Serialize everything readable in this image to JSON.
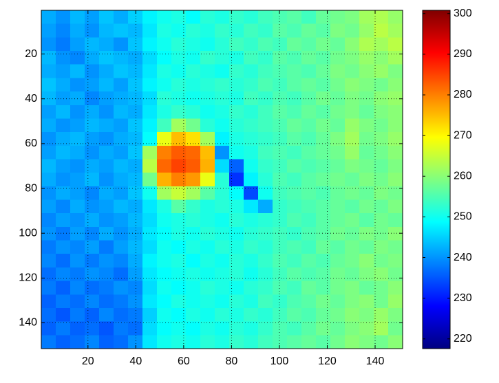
{
  "chart_data": {
    "type": "heatmap",
    "colormap": "jet",
    "grid": true,
    "y_reversed": true,
    "xlim": [
      0.5,
      151.5
    ],
    "ylim": [
      0.5,
      151.5
    ],
    "xticks": [
      20,
      40,
      60,
      80,
      100,
      120,
      140
    ],
    "yticks": [
      20,
      40,
      60,
      80,
      100,
      120,
      140
    ],
    "clim": [
      217.6,
      300.8
    ],
    "cticks": [
      220,
      230,
      240,
      250,
      260,
      270,
      280,
      290,
      300
    ],
    "z": [
      [
        242,
        240,
        243,
        241,
        244,
        242,
        245,
        248,
        250,
        251,
        249,
        252,
        251,
        253,
        252,
        254,
        255,
        256,
        254,
        257,
        258,
        259,
        262,
        263,
        261
      ],
      [
        241,
        239,
        242,
        240,
        243,
        244,
        243,
        247,
        251,
        250,
        252,
        251,
        253,
        252,
        254,
        253,
        256,
        255,
        257,
        256,
        259,
        258,
        261,
        264,
        262
      ],
      [
        240,
        238,
        241,
        243,
        242,
        240,
        244,
        248,
        250,
        252,
        251,
        250,
        252,
        254,
        253,
        255,
        254,
        257,
        256,
        258,
        257,
        260,
        263,
        262,
        264
      ],
      [
        243,
        240,
        239,
        242,
        244,
        243,
        242,
        246,
        249,
        251,
        250,
        253,
        252,
        251,
        254,
        253,
        256,
        255,
        257,
        256,
        258,
        259,
        261,
        260,
        262
      ],
      [
        242,
        241,
        243,
        240,
        242,
        244,
        243,
        247,
        251,
        250,
        252,
        251,
        250,
        253,
        252,
        254,
        255,
        256,
        255,
        257,
        259,
        258,
        260,
        261,
        259
      ],
      [
        244,
        242,
        240,
        241,
        243,
        241,
        244,
        248,
        250,
        252,
        251,
        252,
        253,
        252,
        253,
        255,
        254,
        256,
        257,
        256,
        258,
        260,
        259,
        258,
        260
      ],
      [
        243,
        241,
        242,
        239,
        241,
        242,
        243,
        246,
        252,
        251,
        250,
        251,
        252,
        251,
        254,
        253,
        255,
        254,
        256,
        258,
        257,
        259,
        258,
        260,
        261
      ],
      [
        241,
        243,
        240,
        242,
        240,
        243,
        242,
        247,
        251,
        253,
        252,
        250,
        251,
        253,
        252,
        254,
        256,
        255,
        257,
        256,
        258,
        259,
        257,
        259,
        260
      ],
      [
        242,
        240,
        241,
        243,
        242,
        241,
        244,
        248,
        254,
        262,
        258,
        252,
        250,
        252,
        253,
        254,
        255,
        257,
        256,
        258,
        257,
        261,
        259,
        258,
        260
      ],
      [
        240,
        242,
        243,
        241,
        240,
        242,
        243,
        249,
        268,
        275,
        272,
        262,
        248,
        251,
        252,
        253,
        254,
        256,
        255,
        257,
        259,
        262,
        258,
        259,
        261
      ],
      [
        241,
        243,
        242,
        240,
        242,
        241,
        244,
        262,
        280,
        283,
        282,
        275,
        240,
        250,
        251,
        254,
        255,
        254,
        256,
        257,
        258,
        261,
        257,
        258,
        260
      ],
      [
        243,
        241,
        240,
        242,
        241,
        243,
        242,
        264,
        282,
        285,
        283,
        276,
        246,
        236,
        250,
        253,
        254,
        256,
        255,
        256,
        257,
        259,
        258,
        257,
        259
      ],
      [
        242,
        240,
        241,
        243,
        240,
        242,
        243,
        258,
        276,
        280,
        278,
        268,
        252,
        232,
        248,
        252,
        255,
        254,
        256,
        257,
        258,
        257,
        259,
        258,
        260
      ],
      [
        240,
        242,
        241,
        239,
        242,
        241,
        244,
        250,
        262,
        265,
        262,
        256,
        252,
        249,
        234,
        250,
        254,
        255,
        256,
        255,
        257,
        258,
        257,
        259,
        258
      ],
      [
        241,
        239,
        242,
        240,
        241,
        243,
        242,
        247,
        251,
        256,
        253,
        251,
        252,
        251,
        247,
        242,
        253,
        254,
        255,
        256,
        257,
        256,
        258,
        257,
        259
      ],
      [
        239,
        241,
        240,
        242,
        240,
        241,
        243,
        246,
        250,
        251,
        252,
        251,
        250,
        252,
        251,
        252,
        253,
        255,
        254,
        256,
        257,
        258,
        256,
        258,
        257
      ],
      [
        240,
        238,
        241,
        239,
        242,
        240,
        242,
        247,
        249,
        251,
        250,
        252,
        251,
        250,
        252,
        253,
        254,
        253,
        255,
        256,
        258,
        257,
        259,
        258,
        260
      ],
      [
        238,
        240,
        239,
        241,
        238,
        241,
        243,
        246,
        250,
        249,
        251,
        250,
        252,
        251,
        253,
        252,
        254,
        255,
        254,
        257,
        256,
        258,
        257,
        259,
        258
      ],
      [
        239,
        237,
        240,
        238,
        240,
        239,
        242,
        248,
        250,
        251,
        249,
        251,
        250,
        252,
        251,
        253,
        255,
        254,
        256,
        255,
        257,
        258,
        260,
        258,
        259
      ],
      [
        237,
        239,
        238,
        240,
        239,
        237,
        241,
        247,
        249,
        250,
        251,
        250,
        251,
        252,
        250,
        252,
        254,
        256,
        255,
        256,
        258,
        257,
        259,
        260,
        258
      ],
      [
        238,
        236,
        239,
        237,
        238,
        240,
        239,
        246,
        250,
        249,
        250,
        252,
        251,
        250,
        252,
        253,
        255,
        254,
        257,
        256,
        258,
        259,
        257,
        258,
        260
      ],
      [
        236,
        238,
        237,
        239,
        237,
        238,
        240,
        247,
        249,
        251,
        250,
        251,
        250,
        252,
        251,
        254,
        253,
        255,
        256,
        258,
        257,
        259,
        260,
        258,
        261
      ],
      [
        237,
        235,
        238,
        236,
        239,
        237,
        238,
        245,
        250,
        249,
        251,
        250,
        252,
        251,
        253,
        252,
        254,
        256,
        255,
        257,
        258,
        260,
        259,
        261,
        259
      ],
      [
        236,
        238,
        236,
        237,
        235,
        238,
        237,
        246,
        249,
        250,
        249,
        251,
        250,
        252,
        251,
        253,
        255,
        254,
        256,
        258,
        257,
        259,
        260,
        262,
        258
      ],
      [
        238,
        236,
        237,
        239,
        236,
        237,
        240,
        247,
        250,
        251,
        250,
        252,
        251,
        253,
        252,
        254,
        255,
        256,
        257,
        256,
        258,
        260,
        259,
        258,
        260
      ]
    ]
  }
}
